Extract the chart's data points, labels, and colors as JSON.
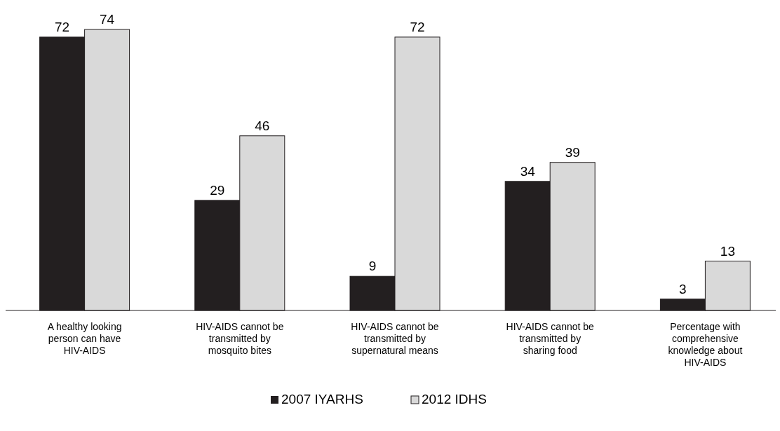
{
  "chart_data": {
    "type": "bar",
    "categories": [
      "A healthy looking person can have HIV-AIDS",
      "HIV-AIDS cannot be transmitted by mosquito bites",
      "HIV-AIDS cannot be transmitted by supernatural means",
      "HIV-AIDS cannot be transmitted by sharing food",
      "Percentage with comprehensive knowledge about HIV-AIDS"
    ],
    "series": [
      {
        "name": "2007 IYARHS",
        "color": "#231f20",
        "values": [
          72,
          29,
          9,
          34,
          3
        ]
      },
      {
        "name": "2012 IDHS",
        "color": "#d9d9d9",
        "values": [
          74,
          46,
          72,
          39,
          13
        ]
      }
    ],
    "data_labels": true,
    "legend": "bottom",
    "grid": false
  }
}
